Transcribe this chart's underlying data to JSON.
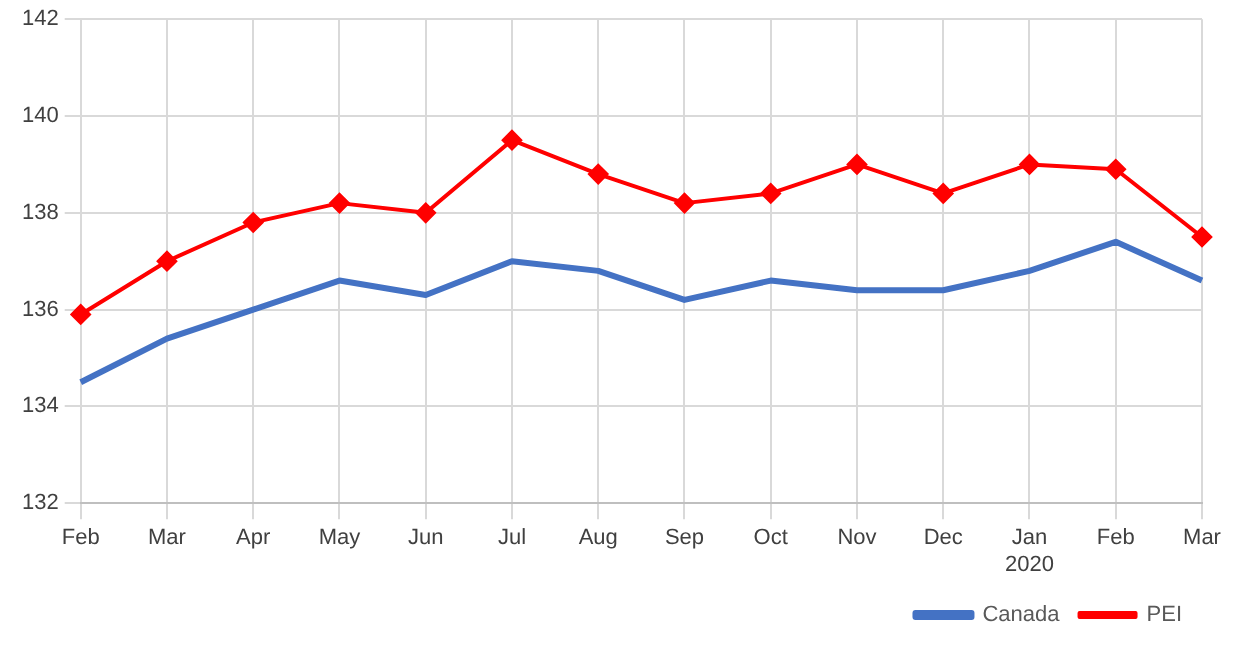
{
  "chart_data": {
    "type": "line",
    "categories": [
      "Feb",
      "Mar",
      "Apr",
      "May",
      "Jun",
      "Jul",
      "Aug",
      "Sep",
      "Oct",
      "Nov",
      "Dec",
      "Jan\n2020",
      "Feb",
      "Mar"
    ],
    "series": [
      {
        "name": "Canada",
        "color": "#4472c4",
        "marker": "none",
        "values": [
          134.5,
          135.4,
          136.0,
          136.6,
          136.3,
          137.0,
          136.8,
          136.2,
          136.6,
          136.4,
          136.4,
          136.8,
          137.4,
          136.6
        ]
      },
      {
        "name": "PEI",
        "color": "#ff0000",
        "marker": "diamond",
        "values": [
          135.9,
          137.0,
          137.8,
          138.2,
          138.0,
          139.5,
          138.8,
          138.2,
          138.4,
          139.0,
          138.4,
          139.0,
          138.9,
          137.5
        ]
      }
    ],
    "ylim": [
      132,
      142
    ],
    "yticks": [
      132,
      134,
      136,
      138,
      140,
      142
    ],
    "grid": true,
    "legend": "bottom right"
  }
}
